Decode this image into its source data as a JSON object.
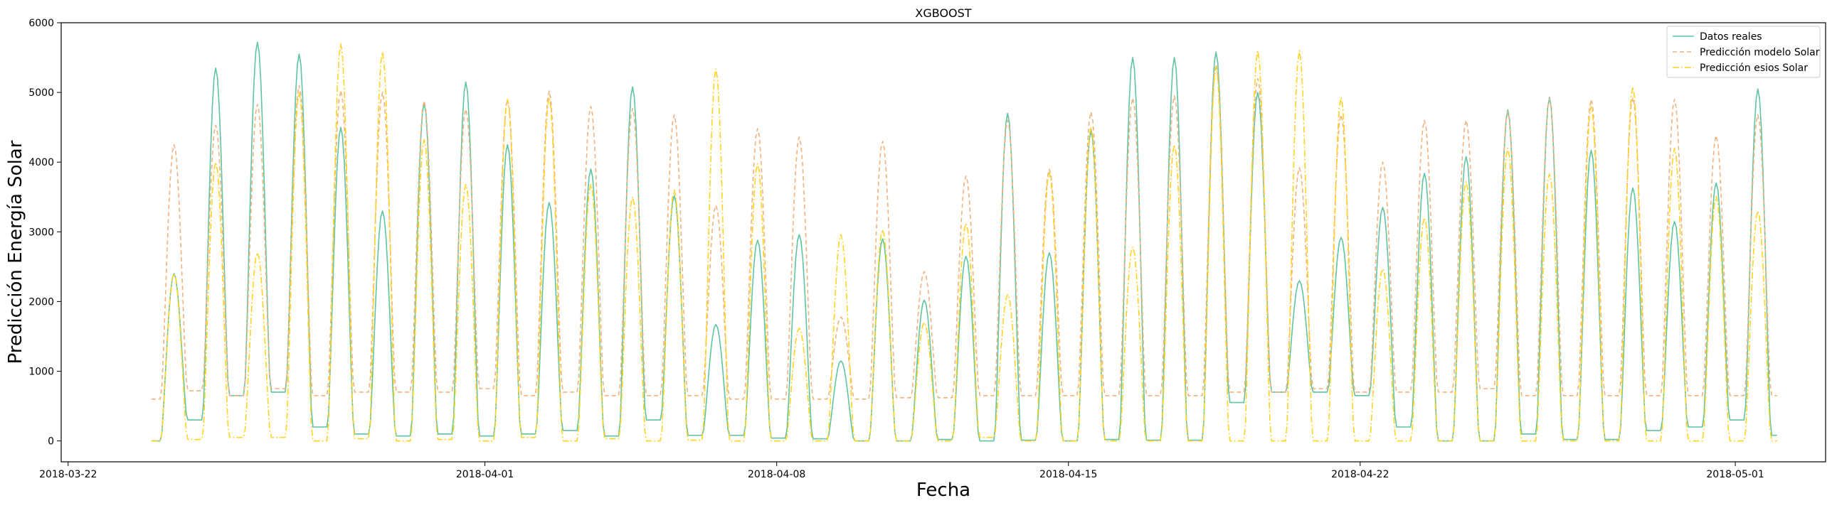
{
  "chart_data": {
    "type": "line",
    "title": "XGBOOST",
    "xlabel": "Fecha",
    "ylabel": "Predicción Energía Solar",
    "xlim": [
      "2018-03-21T20:00",
      "2018-05-03T04:00"
    ],
    "ylim": [
      -300,
      6000
    ],
    "x_ticks": [
      "2018-03-22",
      "2018-04-01",
      "2018-04-08",
      "2018-04-15",
      "2018-04-22",
      "2018-05-01"
    ],
    "y_ticks": [
      0,
      1000,
      2000,
      3000,
      4000,
      5000,
      6000
    ],
    "grid": false,
    "legend_position": "top-right",
    "x_start": "2018-03-24",
    "x_step": "1 day",
    "series": [
      {
        "name": "Datos reales",
        "color": "#5ec4a2",
        "style": "solid",
        "night": [
          0,
          300,
          650,
          700,
          200,
          100,
          70,
          100,
          70,
          100,
          150,
          70,
          300,
          80,
          80,
          40,
          30,
          0,
          0,
          20,
          0,
          10,
          0,
          20,
          10,
          10,
          550,
          700,
          700,
          650,
          200,
          0,
          0,
          100,
          20,
          20,
          150,
          200,
          300,
          80,
          350,
          100,
          100,
          20,
          0
        ],
        "peaks": [
          2400,
          5350,
          5720,
          5550,
          4500,
          3300,
          4850,
          5150,
          4250,
          3420,
          3900,
          5080,
          3520,
          1670,
          2880,
          2960,
          1150,
          2900,
          2020,
          2650,
          4700,
          2700,
          4450,
          5500,
          5500,
          5580,
          5000,
          2300,
          2920,
          3350,
          3840,
          4080,
          4750,
          4930,
          4170,
          3630,
          3150,
          3700,
          5050
        ]
      },
      {
        "name": "Predicción modelo Solar",
        "color": "#f1b27d",
        "style": "dashed",
        "night": [
          600,
          720,
          650,
          750,
          650,
          700,
          700,
          700,
          750,
          650,
          700,
          650,
          650,
          650,
          600,
          600,
          600,
          600,
          620,
          620,
          650,
          650,
          650,
          650,
          650,
          650,
          700,
          700,
          750,
          700,
          700,
          700,
          750,
          650,
          650,
          650,
          650,
          650,
          650,
          650,
          650,
          650,
          650,
          650,
          650
        ],
        "peaks": [
          4250,
          4530,
          4830,
          5100,
          5030,
          5000,
          4880,
          4760,
          4900,
          5020,
          4800,
          4770,
          4680,
          3380,
          4480,
          4360,
          1780,
          4300,
          2430,
          3800,
          4600,
          3900,
          4720,
          4920,
          4950,
          5400,
          5200,
          3920,
          4680,
          4000,
          4600,
          4600,
          4720,
          4910,
          4900,
          4930,
          4900,
          4380,
          4680
        ]
      },
      {
        "name": "Predicción esios Solar",
        "color": "#ffd21f",
        "style": "dashdot",
        "night": [
          0,
          20,
          50,
          50,
          0,
          30,
          0,
          20,
          0,
          50,
          0,
          30,
          0,
          10,
          0,
          0,
          0,
          0,
          0,
          0,
          50,
          0,
          0,
          0,
          0,
          0,
          0,
          0,
          0,
          0,
          0,
          0,
          0,
          0,
          0,
          0,
          0,
          0,
          0,
          0,
          0,
          0,
          0,
          0,
          0
        ],
        "peaks": [
          2400,
          4000,
          2700,
          5000,
          5700,
          5580,
          4320,
          3680,
          4900,
          4930,
          3680,
          3500,
          3600,
          5340,
          3980,
          1620,
          2960,
          3030,
          1700,
          3120,
          2100,
          3850,
          4500,
          2780,
          4250,
          5370,
          5600,
          5600,
          4930,
          2470,
          3200,
          3720,
          4200,
          3830,
          4800,
          5080,
          4200,
          3510,
          3300
        ]
      }
    ]
  }
}
